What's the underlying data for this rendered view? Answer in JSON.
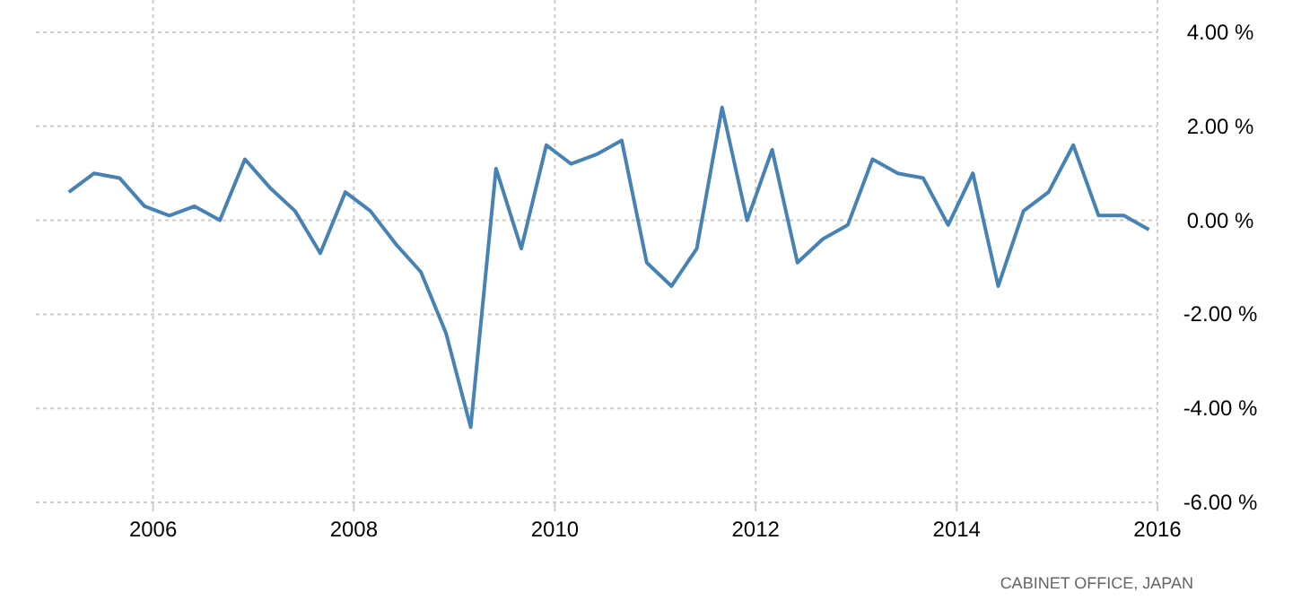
{
  "chart_data": {
    "type": "line",
    "x": [
      "2005-03",
      "2005-06",
      "2005-09",
      "2005-12",
      "2006-03",
      "2006-06",
      "2006-09",
      "2006-12",
      "2007-03",
      "2007-06",
      "2007-09",
      "2007-12",
      "2008-03",
      "2008-06",
      "2008-09",
      "2008-12",
      "2009-03",
      "2009-06",
      "2009-09",
      "2009-12",
      "2010-03",
      "2010-06",
      "2010-09",
      "2010-12",
      "2011-03",
      "2011-06",
      "2011-09",
      "2011-12",
      "2012-03",
      "2012-06",
      "2012-09",
      "2012-12",
      "2013-03",
      "2013-06",
      "2013-09",
      "2013-12",
      "2014-03",
      "2014-06",
      "2014-09",
      "2014-12",
      "2015-03",
      "2015-06",
      "2015-09",
      "2015-12"
    ],
    "series": [
      {
        "color": "#4682b4",
        "values": [
          0.6,
          1.0,
          0.9,
          0.3,
          0.1,
          0.3,
          0.0,
          1.3,
          0.7,
          0.2,
          -0.7,
          0.6,
          0.2,
          -0.5,
          -1.1,
          -2.4,
          -4.4,
          1.1,
          -0.6,
          1.6,
          1.2,
          1.4,
          1.7,
          -0.9,
          -1.4,
          -0.6,
          2.4,
          0.0,
          1.5,
          -0.9,
          -0.4,
          -0.1,
          1.3,
          1.0,
          0.9,
          -0.1,
          1.0,
          -1.4,
          0.2,
          0.6,
          1.6,
          0.1,
          0.1,
          -0.2
        ]
      }
    ],
    "xlim": [
      "2004-11",
      "2016-01"
    ],
    "xticks": [
      {
        "value": "2006-01",
        "label": "2006"
      },
      {
        "value": "2008-01",
        "label": "2008"
      },
      {
        "value": "2010-01",
        "label": "2010"
      },
      {
        "value": "2012-01",
        "label": "2012"
      },
      {
        "value": "2014-01",
        "label": "2014"
      },
      {
        "value": "2016-01",
        "label": "2016"
      }
    ],
    "ylim": [
      -6,
      4
    ],
    "yticks": [
      {
        "value": -6,
        "label": "-6.00 %"
      },
      {
        "value": -4,
        "label": "-4.00 %"
      },
      {
        "value": -2,
        "label": "-2.00 %"
      },
      {
        "value": 0,
        "label": "0.00 %"
      },
      {
        "value": 2,
        "label": "2.00 %"
      },
      {
        "value": 4,
        "label": "4.00 %"
      }
    ],
    "grid": true,
    "marker": "none",
    "line_style": "solid",
    "annotations": [
      "CABINET OFFICE, JAPAN"
    ]
  }
}
